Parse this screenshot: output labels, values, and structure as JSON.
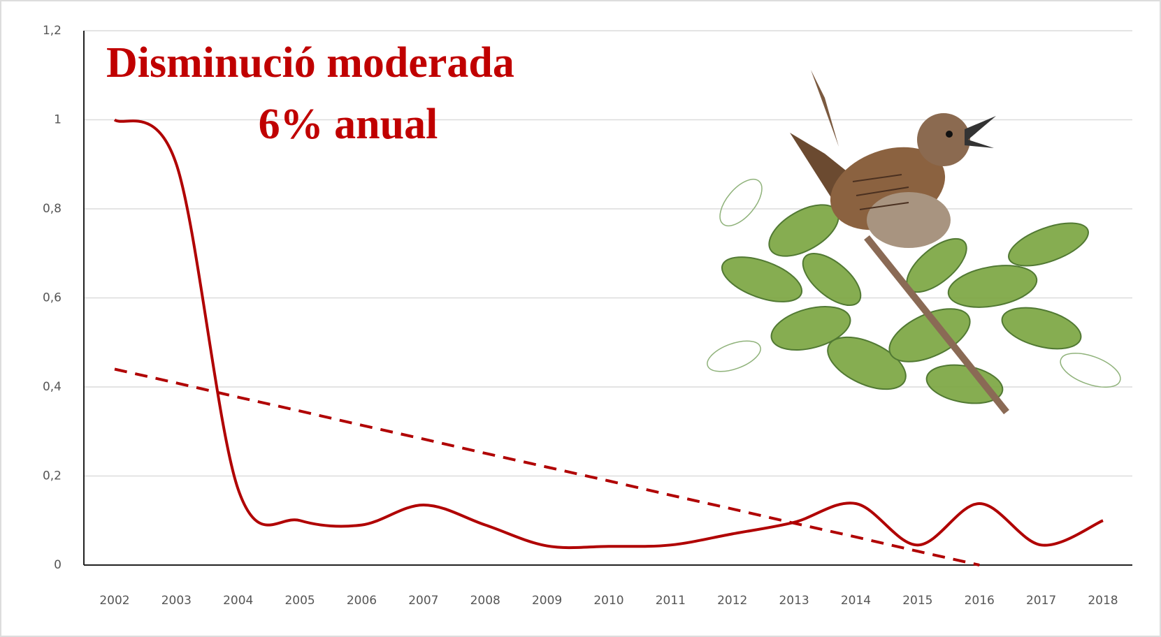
{
  "chart_data": {
    "type": "line",
    "annotations": [
      "Disminució moderada",
      "6% anual"
    ],
    "categories": [
      "2002",
      "2003",
      "2004",
      "2005",
      "2006",
      "2007",
      "2008",
      "2009",
      "2010",
      "2011",
      "2012",
      "2013",
      "2014",
      "2015",
      "2016",
      "2017",
      "2018"
    ],
    "series": [
      {
        "color": "#b00000",
        "smooth": true,
        "dashed": false,
        "values": [
          1.0,
          0.9,
          0.17,
          0.1,
          0.09,
          0.135,
          0.09,
          0.043,
          0.042,
          0.045,
          0.07,
          0.096,
          0.138,
          0.045,
          0.138,
          0.045,
          0.1
        ]
      },
      {
        "color": "#b00000",
        "smooth": false,
        "dashed": true,
        "values": [
          0.44,
          0.409,
          0.377,
          0.346,
          0.314,
          0.283,
          0.251,
          0.22,
          0.189,
          0.157,
          0.126,
          0.094,
          0.063,
          0.031,
          0,
          null,
          null
        ]
      }
    ],
    "ylim": [
      0,
      1.2
    ],
    "yticks": [
      0,
      {
        "value": 0.2,
        "label": "0,2"
      },
      {
        "value": 0.4,
        "label": "0,4"
      },
      {
        "value": 0.6,
        "label": "0,6"
      },
      {
        "value": 0.8,
        "label": "0,8"
      },
      1,
      {
        "value": 1.2,
        "label": "1,2"
      }
    ],
    "grid": true
  }
}
